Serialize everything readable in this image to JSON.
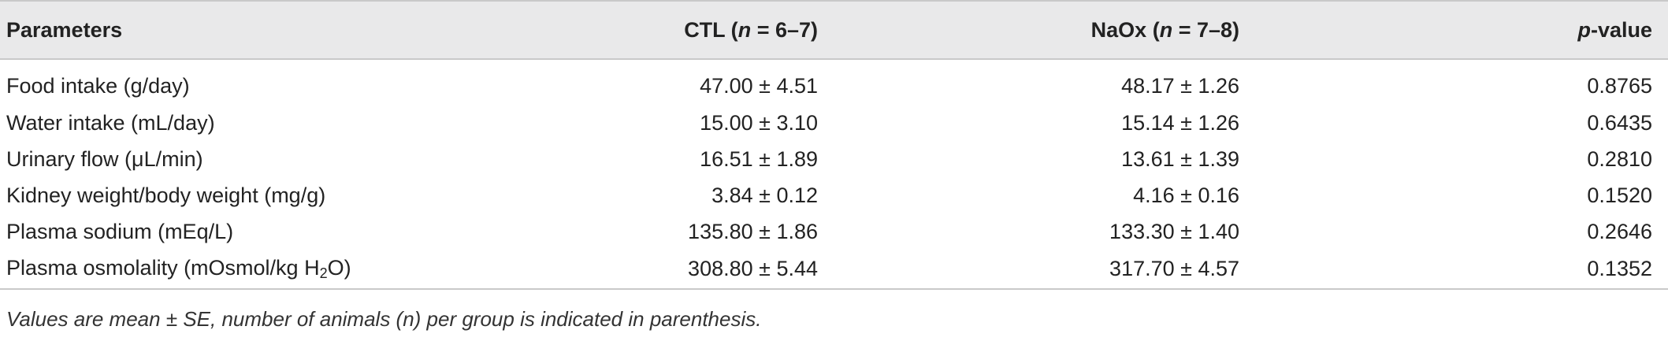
{
  "table": {
    "headers": {
      "parameters": "Parameters",
      "ctl_prefix": "CTL (",
      "ctl_n": "n",
      "ctl_suffix": " = 6–7)",
      "naox_prefix": "NaOx (",
      "naox_n": "n",
      "naox_suffix": " = 7–8)",
      "p_italic": "p",
      "p_suffix": "-value"
    },
    "rows": [
      {
        "parameter": "Food intake (g/day)",
        "ctl": "47.00 ± 4.51",
        "naox": "48.17 ± 1.26",
        "p": "0.8765"
      },
      {
        "parameter": "Water intake (mL/day)",
        "ctl": "15.00 ± 3.10",
        "naox": "15.14 ± 1.26",
        "p": "0.6435"
      },
      {
        "parameter": "Urinary flow (μL/min)",
        "ctl": "16.51 ± 1.89",
        "naox": "13.61 ± 1.39",
        "p": "0.2810"
      },
      {
        "parameter": "Kidney weight/body weight (mg/g)",
        "ctl": "3.84 ± 0.12",
        "naox": "4.16 ± 0.16",
        "p": "0.1520"
      },
      {
        "parameter": "Plasma sodium (mEq/L)",
        "ctl": "135.80 ± 1.86",
        "naox": "133.30 ± 1.40",
        "p": "0.2646"
      },
      {
        "parameter_prefix": "Plasma osmolality (mOsmol/kg H",
        "parameter_sub": "2",
        "parameter_suffix": "O)",
        "ctl": "308.80 ± 5.44",
        "naox": "317.70 ± 4.57",
        "p": "0.1352"
      }
    ],
    "footnote": "Values are mean ± SE, number of animals (n) per group is indicated in parenthesis."
  }
}
